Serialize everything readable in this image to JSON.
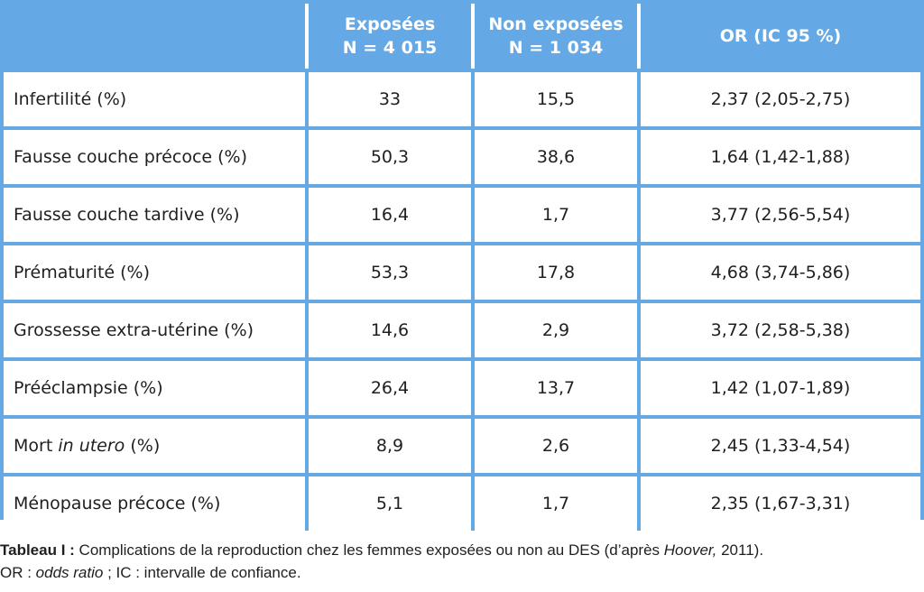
{
  "table": {
    "headers": {
      "exposed_line1": "Exposées",
      "exposed_line2": "N = 4 015",
      "nonexposed_line1": "Non exposées",
      "nonexposed_line2": "N = 1 034",
      "or": "OR (IC 95 %)"
    },
    "rows": [
      {
        "label": "Infertilité (%)",
        "exposed": "33",
        "nonexposed": "15,5",
        "or": "2,37 (2,05-2,75)"
      },
      {
        "label": "Fausse couche précoce (%)",
        "exposed": "50,3",
        "nonexposed": "38,6",
        "or": "1,64 (1,42-1,88)"
      },
      {
        "label": "Fausse couche tardive (%)",
        "exposed": "16,4",
        "nonexposed": "1,7",
        "or": "3,77 (2,56-5,54)"
      },
      {
        "label": "Prématurité (%)",
        "exposed": "53,3",
        "nonexposed": "17,8",
        "or": "4,68 (3,74-5,86)"
      },
      {
        "label": "Grossesse extra-utérine (%)",
        "exposed": "14,6",
        "nonexposed": "2,9",
        "or": "3,72 (2,58-5,38)"
      },
      {
        "label": "Prééclampsie (%)",
        "exposed": "26,4",
        "nonexposed": "13,7",
        "or": "1,42 (1,07-1,89)"
      },
      {
        "label_prefix": "Mort ",
        "label_italic": "in utero",
        "label_suffix": " (%)",
        "exposed": "8,9",
        "nonexposed": "2,6",
        "or": "2,45 (1,33-4,54)"
      },
      {
        "label": "Ménopause précoce (%)",
        "exposed": "5,1",
        "nonexposed": "1,7",
        "or": "2,35 (1,67-3,31)"
      }
    ]
  },
  "caption": {
    "title": "Tableau I :",
    "line1_text": " Complications de la reproduction chez les femmes exposées ou non au DES (d’après ",
    "line1_italic": "Hoover,",
    "line1_end": " 2011).",
    "line2_or": "OR : ",
    "line2_or_italic": "odds ratio",
    "line2_rest": " ; IC : intervalle de confiance."
  },
  "colors": {
    "accent": "#64a9e6",
    "text": "#1f1f1f",
    "header_text": "#ffffff"
  }
}
